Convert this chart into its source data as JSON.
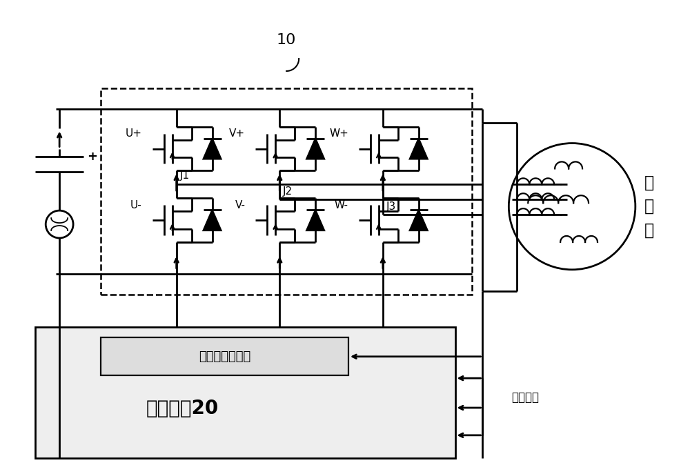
{
  "bg_color": "#ffffff",
  "label_10": "10",
  "label_compressor_1": "压",
  "label_compressor_2": "缩",
  "label_compressor_3": "机",
  "label_control": "控制模块20",
  "label_drive_signal": "压缩机驱动信号",
  "label_current_detect": "电流检测",
  "label_U_plus": "U+",
  "label_V_plus": "V+",
  "label_W_plus": "W+",
  "label_U_minus": "U-",
  "label_V_minus": "V-",
  "label_W_minus": "W-",
  "label_J1": "J1",
  "label_J2": "J2",
  "label_J3": "J3",
  "label_plus": "+"
}
